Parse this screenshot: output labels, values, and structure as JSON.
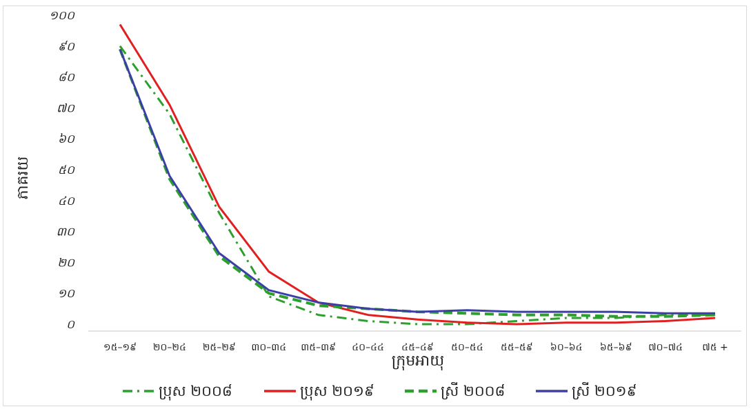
{
  "chart_data": {
    "type": "line",
    "title": "",
    "xlabel": "ក្រុមអាយុ",
    "ylabel": "ភាគរយ",
    "ylim": [
      0,
      100
    ],
    "y_ticks": [
      "០",
      "១០",
      "២០",
      "៣០",
      "៤០",
      "៥០",
      "៦០",
      "៧០",
      "៨០",
      "៩០",
      "១០០"
    ],
    "categories": [
      "១៥–១៩",
      "២០–២៤",
      "២៥–២៩",
      "៣០–៣៤",
      "៣៥–៣៩",
      "៤០–៤៤",
      "៤៥–៤៩",
      "៥០–៥៤",
      "៥៥–៥៩",
      "៦០–៦៤",
      "៦៥–៦៩",
      "៧០–៧៤",
      "៧៥ +"
    ],
    "grid": false,
    "legend_position": "bottom",
    "series": [
      {
        "name": "ប្រុស ២០០៨",
        "color": "#2ca02c",
        "style": "dash-dot",
        "values": [
          90,
          68,
          36,
          9,
          3,
          1,
          0,
          0,
          1,
          2,
          2,
          3,
          3
        ]
      },
      {
        "name": "ប្រុស ២០១៩",
        "color": "#e02020",
        "style": "solid",
        "values": [
          97,
          71,
          38,
          17,
          7,
          3,
          1.5,
          0.5,
          0,
          0.5,
          0.5,
          1,
          2
        ]
      },
      {
        "name": "ស្រី ២០០៨",
        "color": "#2ca02c",
        "style": "dashed",
        "values": [
          89,
          47,
          22,
          10,
          6,
          5,
          4,
          3.5,
          3,
          3,
          2.5,
          2.5,
          3
        ]
      },
      {
        "name": "ស្រី ២០១៩",
        "color": "#3b3fa6",
        "style": "solid",
        "values": [
          89,
          48,
          23,
          11,
          7,
          5,
          4,
          4.5,
          4,
          4,
          4,
          3.5,
          3.5
        ]
      }
    ]
  }
}
